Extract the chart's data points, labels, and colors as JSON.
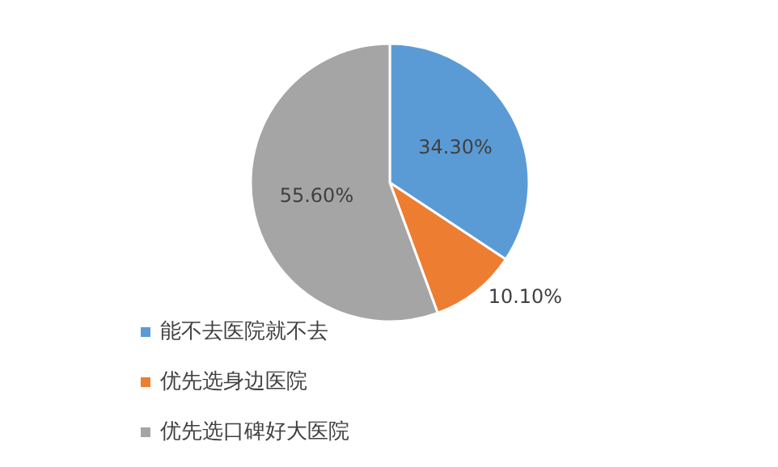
{
  "chart_data": {
    "type": "pie",
    "categories": [
      "能不去医院就不去",
      "优先选身边医院",
      "优先选口碑好大医院"
    ],
    "values": [
      34.3,
      10.1,
      55.6
    ],
    "colors": [
      "#5b9bd5",
      "#ed7d31",
      "#a5a5a5"
    ],
    "value_labels": [
      "34.30%",
      "10.10%",
      "55.60%"
    ],
    "legend": "bottom"
  }
}
